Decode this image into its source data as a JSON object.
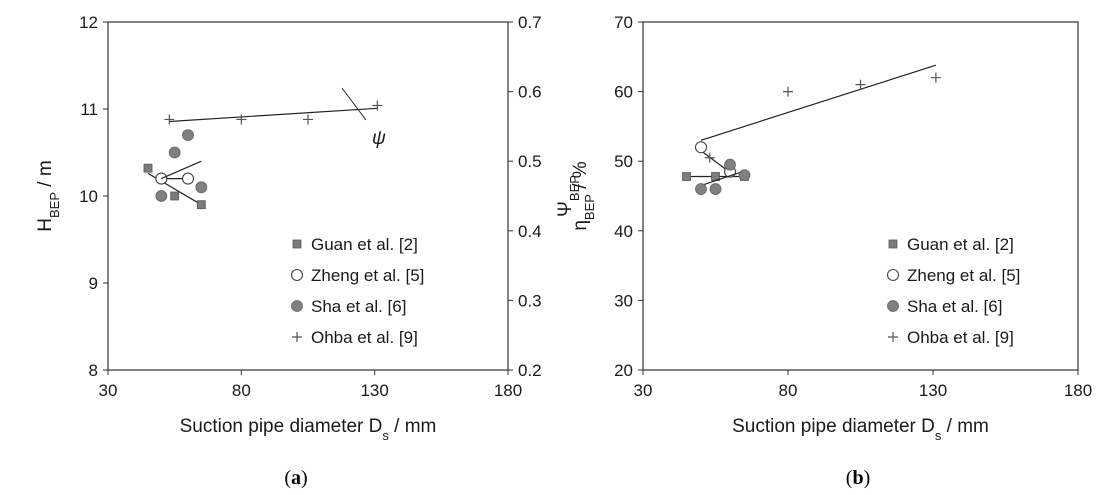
{
  "chart_data": [
    {
      "type": "scatter",
      "panel_label": "a",
      "xlabel": "Suction pipe diameter D",
      "xlabel_sub": "s",
      "xlabel_unit": " / mm",
      "ylabel": "H",
      "ylabel_sub": "BEP",
      "ylabel_unit": " / m",
      "y2label": "Ψ",
      "y2label_sub": "BEP",
      "xlim": [
        30,
        180
      ],
      "ylim": [
        8,
        12
      ],
      "y2lim": [
        0.2,
        0.7
      ],
      "xticks": [
        "30",
        "80",
        "130",
        "180"
      ],
      "yticks": [
        "8",
        "9",
        "10",
        "11",
        "12"
      ],
      "y2ticks": [
        "0.2",
        "0.3",
        "0.4",
        "0.5",
        "0.6",
        "0.7"
      ],
      "legend_position": "bottom-right",
      "series": [
        {
          "name": "Guan et al. [2]",
          "marker": "square",
          "x": [
            45,
            55,
            65
          ],
          "y": [
            10.32,
            10.0,
            9.9
          ],
          "trend": [
            [
              45,
              10.26
            ],
            [
              65,
              9.9
            ]
          ]
        },
        {
          "name": "Zheng et al. [5]",
          "marker": "open-circle",
          "x": [
            50,
            60
          ],
          "y": [
            10.2,
            10.2
          ],
          "trend": [
            [
              48,
              10.2
            ],
            [
              60,
              10.2
            ]
          ]
        },
        {
          "name": "Sha et al. [6]",
          "marker": "filled-circle",
          "x": [
            50,
            55,
            60,
            65
          ],
          "y": [
            10.0,
            10.5,
            10.7,
            10.1
          ],
          "trend": [
            [
              50,
              10.2
            ],
            [
              65,
              10.4
            ]
          ]
        },
        {
          "name": "Ohba et al. [9]",
          "marker": "plus",
          "axis": "right",
          "x": [
            53,
            80,
            105,
            131
          ],
          "y": [
            0.56,
            0.56,
            0.56,
            0.58
          ],
          "trend": [
            [
              53,
              0.557
            ],
            [
              131,
              0.576
            ]
          ]
        }
      ],
      "annotation": {
        "text": "ψ",
        "x": 120,
        "y": 0.585
      }
    },
    {
      "type": "scatter",
      "panel_label": "b",
      "xlabel": "Suction pipe diameter D",
      "xlabel_sub": "s",
      "xlabel_unit": " / mm",
      "ylabel": "η",
      "ylabel_sub": "BEP",
      "ylabel_unit": " / %",
      "xlim": [
        30,
        180
      ],
      "ylim": [
        20,
        70
      ],
      "xticks": [
        "30",
        "80",
        "130",
        "180"
      ],
      "yticks": [
        "20",
        "30",
        "40",
        "50",
        "60",
        "70"
      ],
      "legend_position": "bottom-right",
      "series": [
        {
          "name": "Guan et al. [2]",
          "marker": "square",
          "x": [
            45,
            55,
            65
          ],
          "y": [
            47.8,
            47.8,
            47.8
          ],
          "trend": [
            [
              45,
              47.8
            ],
            [
              65,
              47.8
            ]
          ]
        },
        {
          "name": "Zheng et al. [5]",
          "marker": "open-circle",
          "x": [
            50,
            60
          ],
          "y": [
            52.0,
            48.5
          ],
          "trend": [
            [
              50,
              51.5
            ],
            [
              60,
              48.4
            ]
          ]
        },
        {
          "name": "Sha et al. [6]",
          "marker": "filled-circle",
          "x": [
            50,
            55,
            60,
            65
          ],
          "y": [
            46.0,
            46.0,
            49.5,
            48.0
          ],
          "trend": [
            [
              50,
              46.5
            ],
            [
              65,
              48.6
            ]
          ]
        },
        {
          "name": "Ohba et al. [9]",
          "marker": "plus",
          "x": [
            53,
            80,
            105,
            131
          ],
          "y": [
            50.5,
            60.0,
            61.0,
            62.0
          ],
          "trend": [
            [
              50,
              53.0
            ],
            [
              131,
              63.8
            ]
          ]
        }
      ]
    }
  ]
}
